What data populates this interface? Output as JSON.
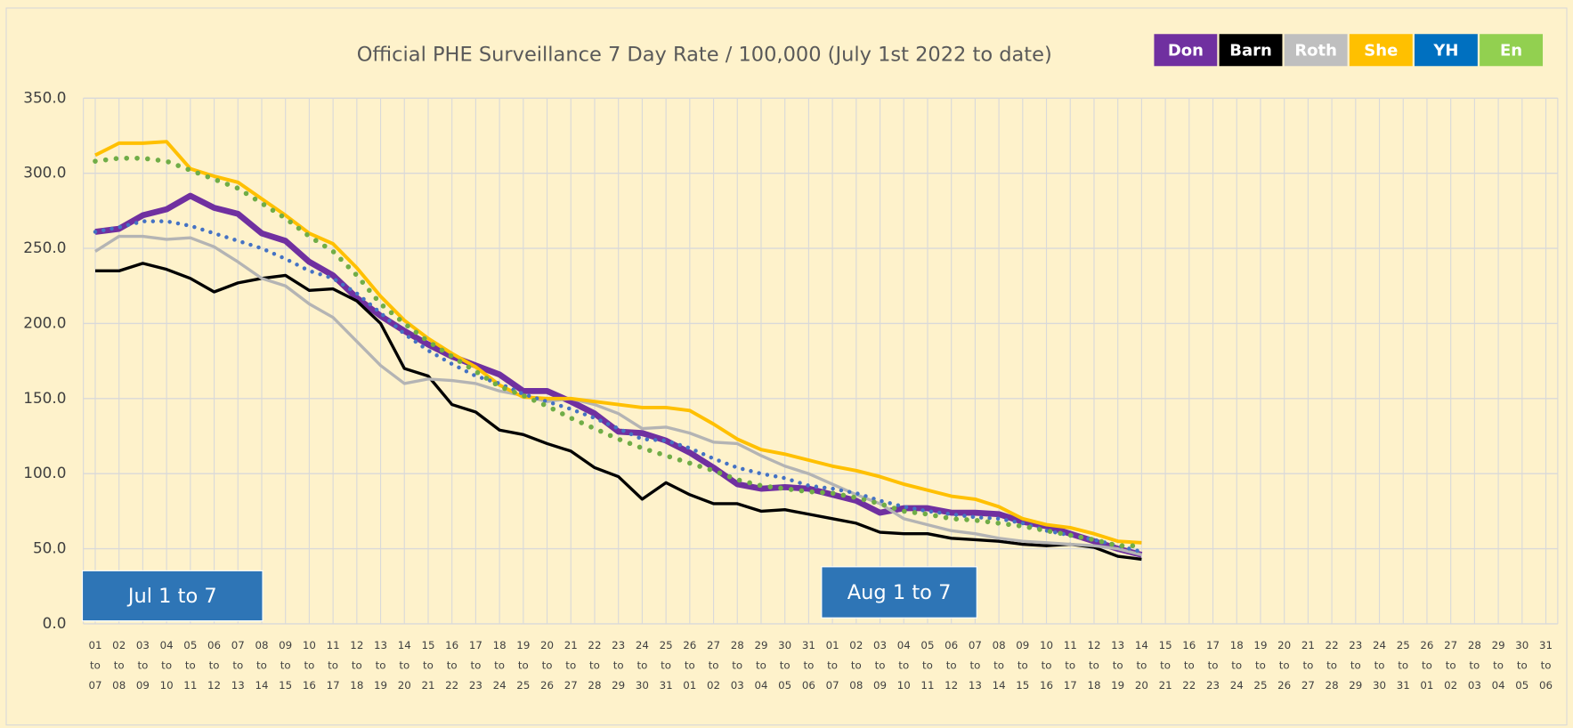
{
  "chart_data": {
    "type": "line",
    "title": "Official PHE Surveillance 7 Day Rate / 100,000 (July 1st 2022 to date)",
    "categories": [
      "01 to 07",
      "02 to 08",
      "03 to 09",
      "04 to 10",
      "05 to 11",
      "06 to 12",
      "07 to 13",
      "08 to 14",
      "09 to 15",
      "10 to 16",
      "11 to 17",
      "12 to 18",
      "13 to 19",
      "14 to 20",
      "15 to 21",
      "16 to 22",
      "17 to 23",
      "18 to 24",
      "19 to 25",
      "20 to 26",
      "21 to 27",
      "22 to 28",
      "23 to 29",
      "24 to 30",
      "25 to 31",
      "26 to 01",
      "27 to 02",
      "28 to 03",
      "29 to 04",
      "30 to 05",
      "31 to 06",
      "01 to 07",
      "02 to 08",
      "03 to 09",
      "04 to 10",
      "05 to 11",
      "06 to 12",
      "07 to 13",
      "08 to 14",
      "09 to 15",
      "10 to 16",
      "11 to 17",
      "12 to 18",
      "13 to 19",
      "14 to 20",
      "15 to 21",
      "16 to 22",
      "17 to 23",
      "18 to 24",
      "19 to 25",
      "20 to 26",
      "21 to 27",
      "22 to 28",
      "23 to 29",
      "24 to 30",
      "25 to 31",
      "26 to 01",
      "27 to 02",
      "28 to 03",
      "29 to 04",
      "30 to 05",
      "31 to 06"
    ],
    "series": [
      {
        "name": "Don",
        "color": "#7030a0",
        "style": "solid",
        "width": 6,
        "values": [
          261,
          263,
          272,
          276,
          285,
          277,
          273,
          260,
          255,
          241,
          232,
          217,
          205,
          195,
          186,
          178,
          172,
          166,
          155,
          155,
          148,
          140,
          128,
          127,
          122,
          114,
          104,
          93,
          90,
          91,
          90,
          86,
          82,
          74,
          77,
          77,
          74,
          74,
          73,
          68,
          65,
          60,
          55,
          50,
          46,
          null,
          null,
          null,
          null,
          null,
          null,
          null,
          null,
          null,
          null,
          null,
          null,
          null,
          null,
          null,
          null,
          null
        ]
      },
      {
        "name": "Barn",
        "color": "#000000",
        "style": "solid",
        "width": 3,
        "values": [
          235,
          235,
          240,
          236,
          230,
          221,
          227,
          230,
          232,
          222,
          223,
          215,
          200,
          170,
          165,
          146,
          141,
          129,
          126,
          120,
          115,
          104,
          98,
          83,
          94,
          86,
          80,
          80,
          75,
          76,
          73,
          70,
          67,
          61,
          60,
          60,
          57,
          56,
          55,
          53,
          52,
          53,
          51,
          45,
          43,
          null,
          null,
          null,
          null,
          null,
          null,
          null,
          null,
          null,
          null,
          null,
          null,
          null,
          null,
          null,
          null,
          null
        ]
      },
      {
        "name": "Roth",
        "color": "#b4b4b4",
        "style": "solid",
        "width": 3,
        "values": [
          248,
          258,
          258,
          256,
          257,
          251,
          241,
          230,
          225,
          213,
          204,
          188,
          172,
          160,
          163,
          162,
          160,
          155,
          152,
          148,
          150,
          146,
          140,
          130,
          131,
          127,
          121,
          120,
          112,
          105,
          100,
          93,
          86,
          80,
          70,
          66,
          62,
          60,
          57,
          55,
          54,
          53,
          52,
          50,
          46,
          null,
          null,
          null,
          null,
          null,
          null,
          null,
          null,
          null,
          null,
          null,
          null,
          null,
          null,
          null,
          null,
          null
        ]
      },
      {
        "name": "She",
        "color": "#ffc000",
        "style": "solid",
        "width": 3.5,
        "values": [
          312,
          320,
          320,
          321,
          303,
          298,
          294,
          283,
          272,
          260,
          253,
          237,
          218,
          202,
          190,
          180,
          171,
          159,
          151,
          150,
          150,
          148,
          146,
          144,
          144,
          142,
          133,
          123,
          116,
          113,
          109,
          105,
          102,
          98,
          93,
          89,
          85,
          83,
          78,
          70,
          66,
          64,
          60,
          55,
          54,
          null,
          null,
          null,
          null,
          null,
          null,
          null,
          null,
          null,
          null,
          null,
          null,
          null,
          null,
          null,
          null,
          null
        ]
      },
      {
        "name": "YH",
        "color": "#4472c4",
        "style": "dotted",
        "width": 4,
        "values": [
          261,
          264,
          268,
          268,
          265,
          260,
          255,
          250,
          243,
          235,
          230,
          220,
          207,
          193,
          182,
          173,
          165,
          160,
          153,
          148,
          143,
          137,
          130,
          123,
          122,
          117,
          110,
          104,
          100,
          97,
          92,
          90,
          87,
          82,
          78,
          75,
          73,
          71,
          70,
          67,
          62,
          59,
          56,
          52,
          48,
          null,
          null,
          null,
          null,
          null,
          null,
          null,
          null,
          null,
          null,
          null,
          null,
          null,
          null,
          null,
          null,
          null
        ]
      },
      {
        "name": "En",
        "color": "#70ad47",
        "style": "dotted",
        "width": 5,
        "values": [
          308,
          310,
          310,
          308,
          302,
          296,
          290,
          280,
          270,
          258,
          248,
          232,
          213,
          200,
          188,
          178,
          168,
          158,
          152,
          145,
          137,
          130,
          123,
          117,
          112,
          107,
          102,
          96,
          92,
          90,
          88,
          87,
          84,
          80,
          75,
          73,
          70,
          69,
          67,
          65,
          62,
          59,
          56,
          52,
          52,
          null,
          null,
          null,
          null,
          null,
          null,
          null,
          null,
          null,
          null,
          null,
          null,
          null,
          null,
          null,
          null,
          null
        ]
      }
    ],
    "legend_colors": [
      "#7030a0",
      "#000000",
      "#bfbfbf",
      "#ffc000",
      "#0070c0",
      "#92d050"
    ],
    "annotations": [
      "Jul 1 to 7",
      "Aug 1 to 7"
    ],
    "ylim": [
      0,
      350
    ],
    "yticks": [
      {
        "value": 0,
        "label": "0.0"
      },
      {
        "value": 50,
        "label": "50.0"
      },
      {
        "value": 100,
        "label": "100.0"
      },
      {
        "value": 150,
        "label": "150.0"
      },
      {
        "value": 200,
        "label": "200.0"
      },
      {
        "value": 250,
        "label": "250.0"
      },
      {
        "value": 300,
        "label": "300.0"
      },
      {
        "value": 350,
        "label": "350.0"
      }
    ],
    "grid": true,
    "legend_position": "top-right"
  }
}
